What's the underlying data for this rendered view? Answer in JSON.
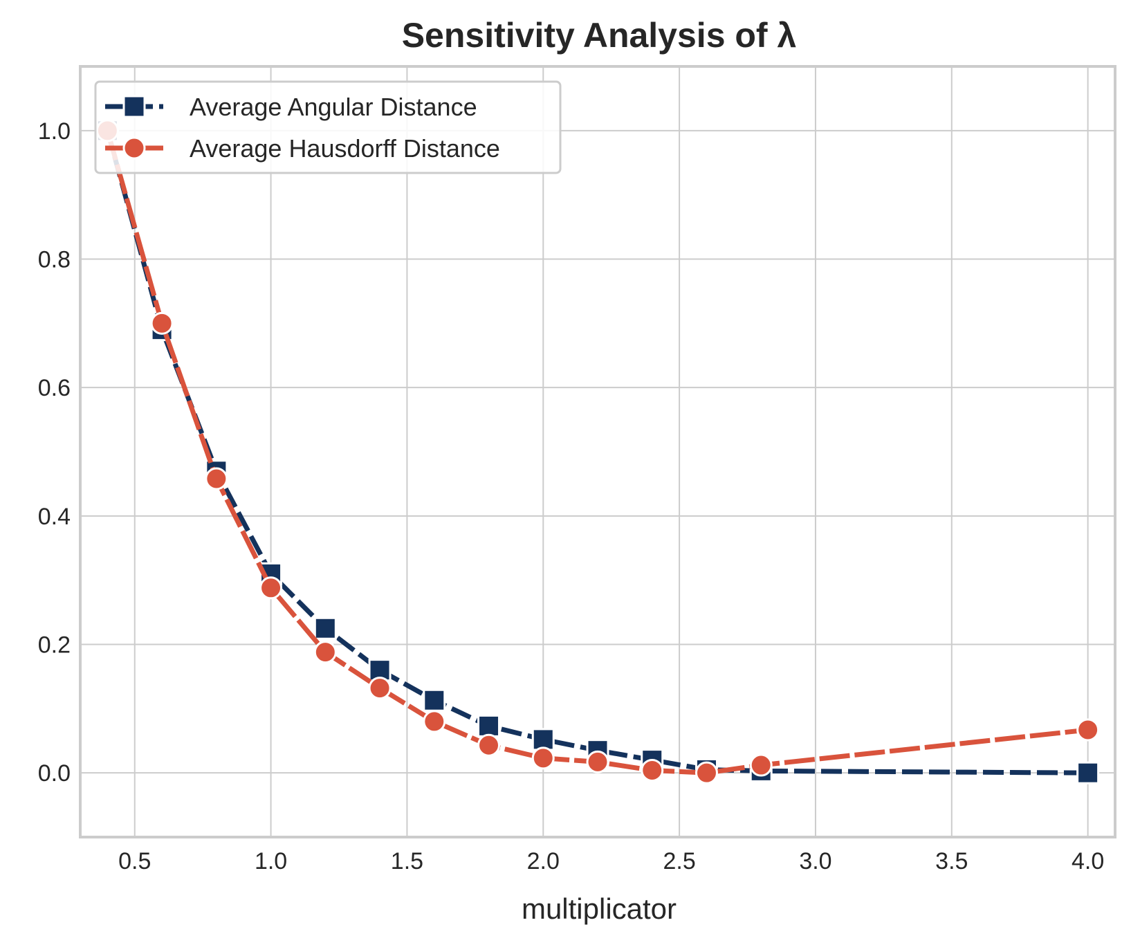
{
  "chart_data": {
    "type": "line",
    "title": "Sensitivity Analysis of λ",
    "xlabel": "multiplicator",
    "ylabel": "",
    "xlim": [
      0.3,
      4.1
    ],
    "ylim": [
      -0.1,
      1.1
    ],
    "x_ticks": [
      0.5,
      1.0,
      1.5,
      2.0,
      2.5,
      3.0,
      3.5,
      4.0
    ],
    "x_tick_labels": [
      "0.5",
      "1.0",
      "1.5",
      "2.0",
      "2.5",
      "3.0",
      "3.5",
      "4.0"
    ],
    "y_ticks": [
      0.0,
      0.2,
      0.4,
      0.6,
      0.8,
      1.0
    ],
    "y_tick_labels": [
      "0.0",
      "0.2",
      "0.4",
      "0.6",
      "0.8",
      "1.0"
    ],
    "grid": true,
    "legend_position": "top-left",
    "series": [
      {
        "name": "Average Angular Distance",
        "color": "#14325c",
        "marker": "square",
        "line_style": "dashed",
        "x": [
          0.4,
          0.6,
          0.8,
          1.0,
          1.2,
          1.4,
          1.6,
          1.8,
          2.0,
          2.2,
          2.4,
          2.6,
          2.8,
          4.0
        ],
        "y": [
          1.0,
          0.69,
          0.47,
          0.31,
          0.225,
          0.16,
          0.113,
          0.073,
          0.052,
          0.035,
          0.02,
          0.005,
          0.003,
          0.0
        ]
      },
      {
        "name": "Average Hausdorff Distance",
        "color": "#d9533c",
        "marker": "circle",
        "line_style": "dashed",
        "x": [
          0.4,
          0.6,
          0.8,
          1.0,
          1.2,
          1.4,
          1.6,
          1.8,
          2.0,
          2.2,
          2.4,
          2.6,
          2.8,
          4.0
        ],
        "y": [
          1.0,
          0.7,
          0.458,
          0.288,
          0.188,
          0.132,
          0.08,
          0.043,
          0.023,
          0.017,
          0.004,
          0.0,
          0.012,
          0.067
        ]
      }
    ]
  }
}
